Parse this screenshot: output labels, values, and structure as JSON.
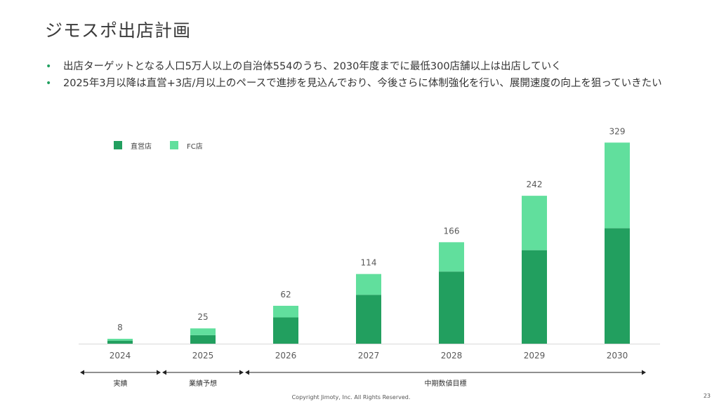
{
  "title": "ジモスポ出店計画",
  "bullets": [
    "出店ターゲットとなる人口5万人以上の自治体554のうち、2030年度までに最低300店舗以上は出店していく",
    "2025年3月以降は直営+3店/月以上のペースで進捗を見込んでおり、今後さらに体制強化を行い、展開速度の向上を狙っていきたい"
  ],
  "bullet_marker": "•",
  "colors": {
    "direct": "#229f5f",
    "fc": "#61df9d",
    "accent": "#21a060"
  },
  "chart_data": {
    "type": "bar",
    "stacked": true,
    "categories": [
      "2024",
      "2025",
      "2026",
      "2027",
      "2028",
      "2029",
      "2030"
    ],
    "series": [
      {
        "name": "直営店",
        "values": [
          5,
          14,
          43,
          80,
          118,
          153,
          189
        ],
        "color": "#229f5f"
      },
      {
        "name": "FC店",
        "values": [
          3,
          11,
          19,
          34,
          48,
          89,
          140
        ],
        "color": "#61df9d"
      }
    ],
    "totals": [
      8,
      25,
      62,
      114,
      166,
      242,
      329
    ],
    "ylim": [
      0,
      350
    ],
    "legend_position": "top-left",
    "grid": false,
    "phases": [
      {
        "label": "実績",
        "from": 0,
        "to": 0
      },
      {
        "label": "業績予想",
        "from": 1,
        "to": 1
      },
      {
        "label": "中期数値目標",
        "from": 2,
        "to": 6
      }
    ]
  },
  "footer": "Copyright Jimoty, Inc. All Rights Reserved.",
  "page_number": "23"
}
